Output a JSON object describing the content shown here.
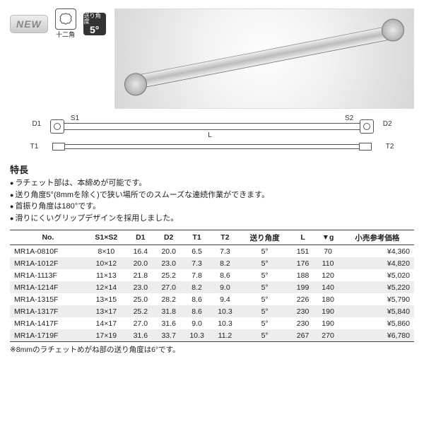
{
  "badges": {
    "new_label": "NEW",
    "points_label": "十二角",
    "angle_title": "送り角度",
    "angle_value": "5°"
  },
  "diagram": {
    "D1": "D1",
    "S1": "S1",
    "S2": "S2",
    "D2": "D2",
    "L": "L",
    "T1": "T1",
    "T2": "T2"
  },
  "features": {
    "header": "特長",
    "items": [
      "ラチェット部は、本締めが可能です。",
      "送り角度5°(8mmを除く)で狭い場所でのスムーズな連続作業ができます。",
      "首振り角度は180°です。",
      "滑りにくいグリップデザインを採用しました。"
    ]
  },
  "table": {
    "columns": [
      "No.",
      "S1×S2",
      "D1",
      "D2",
      "T1",
      "T2",
      "送り角度",
      "L",
      "▼g",
      "小売参考価格"
    ],
    "rows": [
      [
        "MR1A-0810F",
        "8×10",
        "16.4",
        "20.0",
        "6.5",
        "7.3",
        "5°",
        "151",
        "70",
        "¥4,360"
      ],
      [
        "MR1A-1012F",
        "10×12",
        "20.0",
        "23.0",
        "7.3",
        "8.2",
        "5°",
        "176",
        "110",
        "¥4,820"
      ],
      [
        "MR1A-1113F",
        "11×13",
        "21.8",
        "25.2",
        "7.8",
        "8.6",
        "5°",
        "188",
        "120",
        "¥5,020"
      ],
      [
        "MR1A-1214F",
        "12×14",
        "23.0",
        "27.0",
        "8.2",
        "9.0",
        "5°",
        "199",
        "140",
        "¥5,220"
      ],
      [
        "MR1A-1315F",
        "13×15",
        "25.0",
        "28.2",
        "8.6",
        "9.4",
        "5°",
        "226",
        "180",
        "¥5,790"
      ],
      [
        "MR1A-1317F",
        "13×17",
        "25.2",
        "31.8",
        "8.6",
        "10.3",
        "5°",
        "230",
        "190",
        "¥5,840"
      ],
      [
        "MR1A-1417F",
        "14×17",
        "27.0",
        "31.6",
        "9.0",
        "10.3",
        "5°",
        "230",
        "190",
        "¥5,860"
      ],
      [
        "MR1A-1719F",
        "17×19",
        "31.6",
        "33.7",
        "10.3",
        "11.2",
        "5°",
        "267",
        "270",
        "¥6,780"
      ]
    ]
  },
  "footnote": "※8mmのラチェットめがね部の送り角度は6°です。",
  "colors": {
    "header_border": "#444444",
    "row_alt_bg": "#ededed",
    "text": "#222222"
  }
}
